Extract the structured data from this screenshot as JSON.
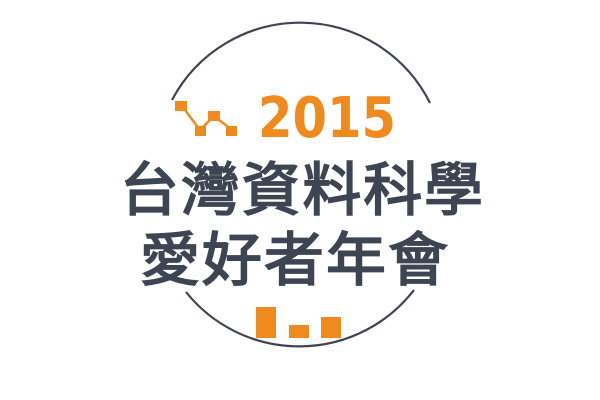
{
  "logo": {
    "year": "2015",
    "title_line1": "台灣資料科學",
    "title_line2": "愛好者年會"
  },
  "colors": {
    "accent": "#f08a1c",
    "text": "#3e4552",
    "ring": "#3e4552",
    "background": "#ffffff"
  },
  "icons": {
    "top_left": "zigzag-line-chart-icon",
    "bottom": "bar-chart-icon"
  }
}
